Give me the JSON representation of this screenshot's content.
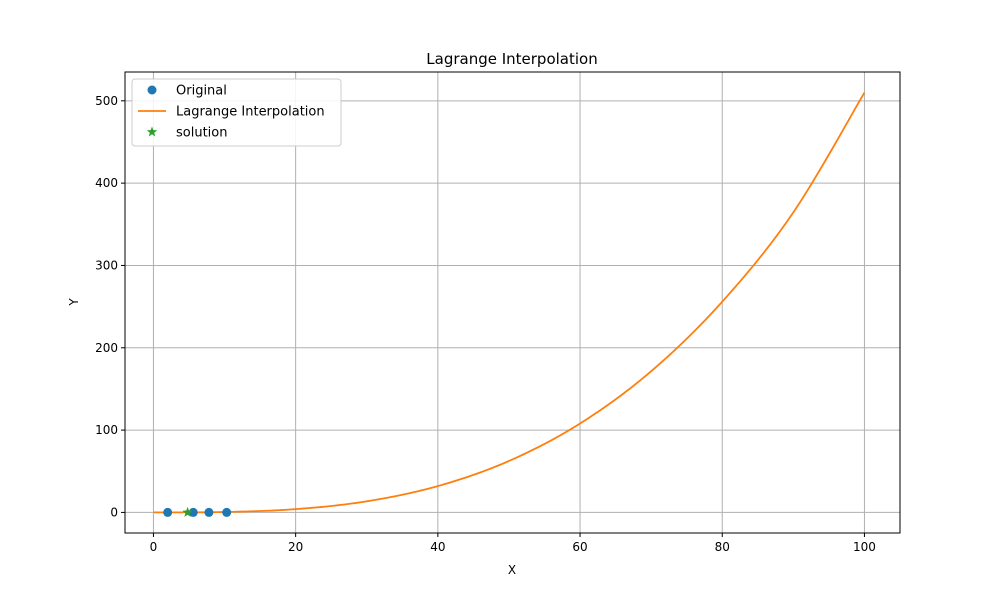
{
  "chart_data": {
    "type": "line",
    "title": "Lagrange Interpolation",
    "xlabel": "X",
    "ylabel": "Y",
    "xlim": [
      -4,
      105
    ],
    "ylim": [
      -25,
      535
    ],
    "xticks": [
      0,
      20,
      40,
      60,
      80,
      100
    ],
    "yticks": [
      0,
      100,
      200,
      300,
      400,
      500
    ],
    "grid": true,
    "legend_position": "top-left",
    "series": [
      {
        "name": "Original",
        "kind": "scatter",
        "color": "#1f77b4",
        "marker": "circle",
        "x": [
          2,
          5.6,
          7.8,
          10.3
        ],
        "y": [
          0,
          0,
          0,
          0
        ]
      },
      {
        "name": "Lagrange Interpolation",
        "kind": "line",
        "color": "#ff7f0e",
        "x": [
          0,
          10,
          20,
          30,
          40,
          50,
          60,
          70,
          80,
          90,
          100
        ],
        "y": [
          0,
          0.5,
          4,
          13.5,
          32,
          62.5,
          108,
          171.5,
          256,
          364.5,
          510
        ]
      },
      {
        "name": "solution",
        "kind": "scatter",
        "color": "#2ca02c",
        "marker": "star",
        "x": [
          4.8
        ],
        "y": [
          0
        ]
      }
    ]
  }
}
